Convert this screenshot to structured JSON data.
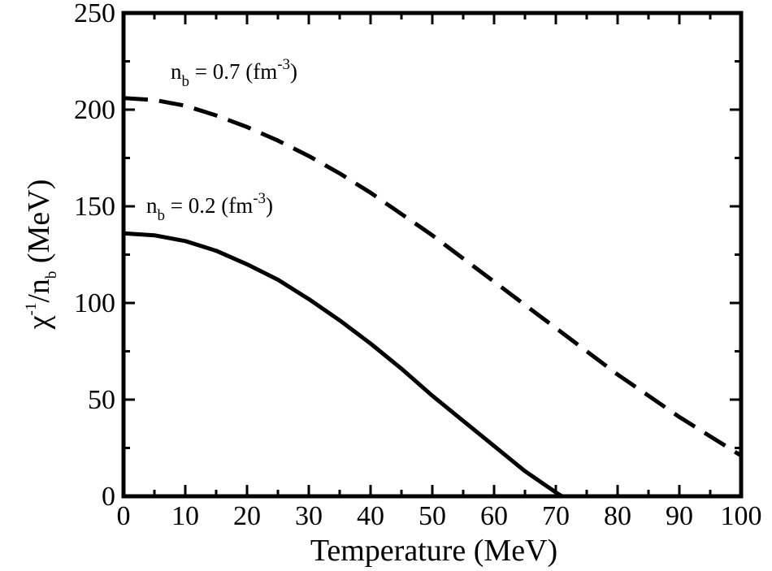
{
  "chart_data": {
    "type": "line",
    "title": "",
    "xlabel": "Temperature (MeV)",
    "ylabel": {
      "main": "χ",
      "sup": "-1",
      "mid": "/n",
      "sub": "b",
      "tail": " (MeV)"
    },
    "xlim": [
      0,
      100
    ],
    "ylim": [
      0,
      250
    ],
    "x_ticks": [
      "0",
      "10",
      "20",
      "30",
      "40",
      "50",
      "60",
      "70",
      "80",
      "90",
      "100"
    ],
    "y_ticks": [
      "0",
      "50",
      "100",
      "150",
      "200",
      "250"
    ],
    "grid": false,
    "legend": "none",
    "series": [
      {
        "style": "solid",
        "color": "#000000",
        "annotation": {
          "pre": "n",
          "sub": "b",
          "mid": " = 0.2 (fm",
          "sup": "-3",
          "post": ")"
        },
        "x": [
          0,
          5,
          10,
          15,
          20,
          25,
          30,
          35,
          40,
          45,
          50,
          55,
          60,
          65,
          70,
          71,
          72
        ],
        "y": [
          136,
          135,
          132,
          127,
          120,
          112,
          102,
          91,
          79,
          66,
          52,
          39,
          26,
          13,
          2,
          0,
          0
        ]
      },
      {
        "style": "dashed",
        "color": "#000000",
        "annotation": {
          "pre": "n",
          "sub": "b",
          "mid": " = 0.7 (fm",
          "sup": "-3",
          "post": ")"
        },
        "x": [
          0,
          5,
          10,
          15,
          20,
          25,
          30,
          35,
          40,
          45,
          50,
          55,
          60,
          65,
          70,
          75,
          80,
          85,
          90,
          95,
          100
        ],
        "y": [
          206,
          205,
          202,
          197,
          191,
          184,
          176,
          167,
          157,
          146,
          135,
          123,
          111,
          99,
          87,
          75,
          63,
          52,
          41,
          31,
          21
        ]
      }
    ]
  }
}
